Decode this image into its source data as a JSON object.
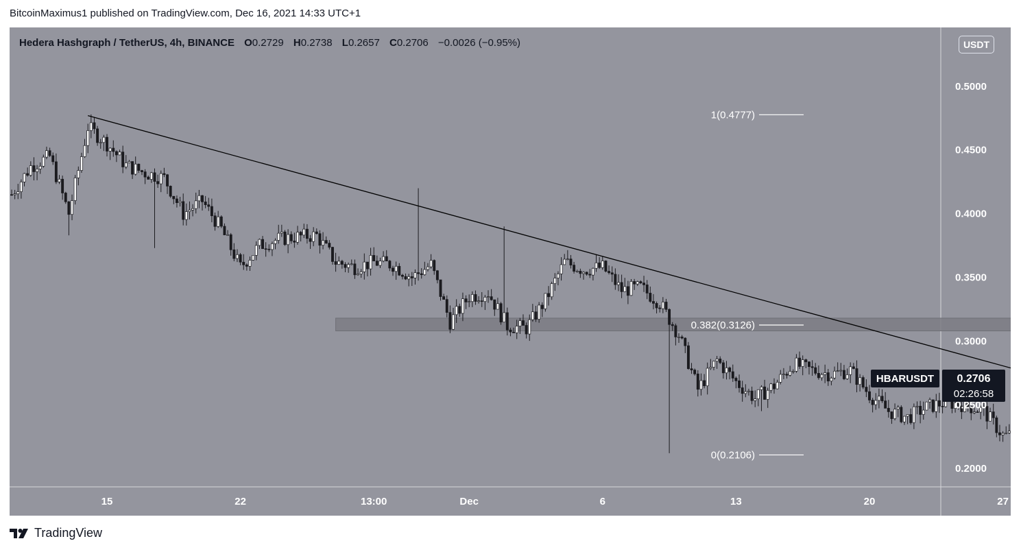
{
  "publisher_line": "BitcoinMaximus1 published on TradingView.com, Dec 16, 2021 14:33 UTC+1",
  "legend": {
    "title": "Hedera Hashgraph / TetherUS, 4h, BINANCE",
    "open_label": "O",
    "open": "0.2729",
    "high_label": "H",
    "high": "0.2738",
    "low_label": "L",
    "low": "0.2657",
    "close_label": "C",
    "close": "0.2706",
    "change": "−0.0026 (−0.95%)"
  },
  "unit_badge": "USDT",
  "price_tag": {
    "symbol": "HBARUSDT",
    "price": "0.2706",
    "countdown": "02:26:58"
  },
  "footer": {
    "brand": "TradingView"
  },
  "colors": {
    "background": "#94959e",
    "candle_up": "#ffffff",
    "candle_down": "#1b1b1f",
    "wick": "#1b1b1f",
    "trendline": "#000000",
    "fib_line": "#ffffff",
    "zone_fill": "#7c7d84",
    "price_tag_bg": "#131722"
  },
  "chart_data": {
    "type": "candlestick",
    "symbol": "HBARUSDT",
    "timeframe": "4h",
    "x_ticks": [
      "15",
      "22",
      "13:00",
      "Dec",
      "6",
      "13",
      "20",
      "27"
    ],
    "y_ticks": [
      "0.5000",
      "0.4500",
      "0.4000",
      "0.3500",
      "0.3000",
      "0.2500",
      "0.2000"
    ],
    "ylim": [
      0.192,
      0.522
    ],
    "price_anchors": [
      {
        "date": "2021-11-10",
        "price": 0.415
      },
      {
        "date": "2021-11-11",
        "price": 0.437
      },
      {
        "date": "2021-11-12",
        "price": 0.445
      },
      {
        "date": "2021-11-13",
        "price": 0.4
      },
      {
        "date": "2021-11-14",
        "price": 0.468
      },
      {
        "date": "2021-11-15",
        "price": 0.455
      },
      {
        "date": "2021-11-16",
        "price": 0.438
      },
      {
        "date": "2021-11-17",
        "price": 0.432
      },
      {
        "date": "2021-11-18",
        "price": 0.428
      },
      {
        "date": "2021-11-19",
        "price": 0.4
      },
      {
        "date": "2021-11-20",
        "price": 0.41
      },
      {
        "date": "2021-11-21",
        "price": 0.388
      },
      {
        "date": "2021-11-22",
        "price": 0.358
      },
      {
        "date": "2021-11-23",
        "price": 0.375
      },
      {
        "date": "2021-11-24",
        "price": 0.38
      },
      {
        "date": "2021-11-25",
        "price": 0.382
      },
      {
        "date": "2021-11-26",
        "price": 0.383
      },
      {
        "date": "2021-11-27",
        "price": 0.362
      },
      {
        "date": "2021-11-28",
        "price": 0.358
      },
      {
        "date": "2021-11-29",
        "price": 0.362
      },
      {
        "date": "2021-11-30",
        "price": 0.36
      },
      {
        "date": "2021-12-01",
        "price": 0.35
      },
      {
        "date": "2021-12-02",
        "price": 0.36
      },
      {
        "date": "2021-12-03",
        "price": 0.315
      },
      {
        "date": "2021-12-04",
        "price": 0.335
      },
      {
        "date": "2021-12-05",
        "price": 0.338
      },
      {
        "date": "2021-12-06",
        "price": 0.312
      },
      {
        "date": "2021-12-07",
        "price": 0.31
      },
      {
        "date": "2021-12-08",
        "price": 0.332
      },
      {
        "date": "2021-12-09",
        "price": 0.362
      },
      {
        "date": "2021-12-10",
        "price": 0.356
      },
      {
        "date": "2021-12-11",
        "price": 0.358
      },
      {
        "date": "2021-12-12",
        "price": 0.34
      },
      {
        "date": "2021-12-13",
        "price": 0.342
      },
      {
        "date": "2021-12-14",
        "price": 0.33
      },
      {
        "date": "2021-12-15",
        "price": 0.305
      },
      {
        "date": "2021-12-16",
        "price": 0.262
      },
      {
        "date": "2021-12-17",
        "price": 0.285
      },
      {
        "date": "2021-12-18",
        "price": 0.268
      },
      {
        "date": "2021-12-19",
        "price": 0.255
      },
      {
        "date": "2021-12-20",
        "price": 0.265
      },
      {
        "date": "2021-12-21",
        "price": 0.282
      },
      {
        "date": "2021-12-22",
        "price": 0.277
      },
      {
        "date": "2021-12-23",
        "price": 0.274
      },
      {
        "date": "2021-12-24",
        "price": 0.277
      },
      {
        "date": "2021-12-25",
        "price": 0.258
      },
      {
        "date": "2021-12-26",
        "price": 0.245
      },
      {
        "date": "2021-12-27",
        "price": 0.24
      },
      {
        "date": "2021-12-28",
        "price": 0.248
      },
      {
        "date": "2021-12-29",
        "price": 0.252
      },
      {
        "date": "2021-12-30",
        "price": 0.25
      },
      {
        "date": "2021-12-31",
        "price": 0.245
      },
      {
        "date": "2022-01-01",
        "price": 0.226
      },
      {
        "date": "2022-01-02",
        "price": 0.226
      },
      {
        "date": "2022-01-03",
        "price": 0.238
      },
      {
        "date": "2022-01-04",
        "price": 0.25
      },
      {
        "date": "2022-01-05",
        "price": 0.2706
      }
    ],
    "trendline": [
      {
        "date": "2021-11-14",
        "price": 0.477
      },
      {
        "date": "2022-01-07",
        "price": 0.256
      }
    ],
    "fib_levels": [
      {
        "label": "1(0.4777)",
        "price": 0.4777
      },
      {
        "label": "0.382(0.3126)",
        "price": 0.3126
      },
      {
        "label": "0(0.2106)",
        "price": 0.2106
      }
    ],
    "support_zone": {
      "from_date": "2021-11-27",
      "to_date": "2022-01-18",
      "low": 0.308,
      "high": 0.318
    },
    "last_price": 0.2706
  }
}
